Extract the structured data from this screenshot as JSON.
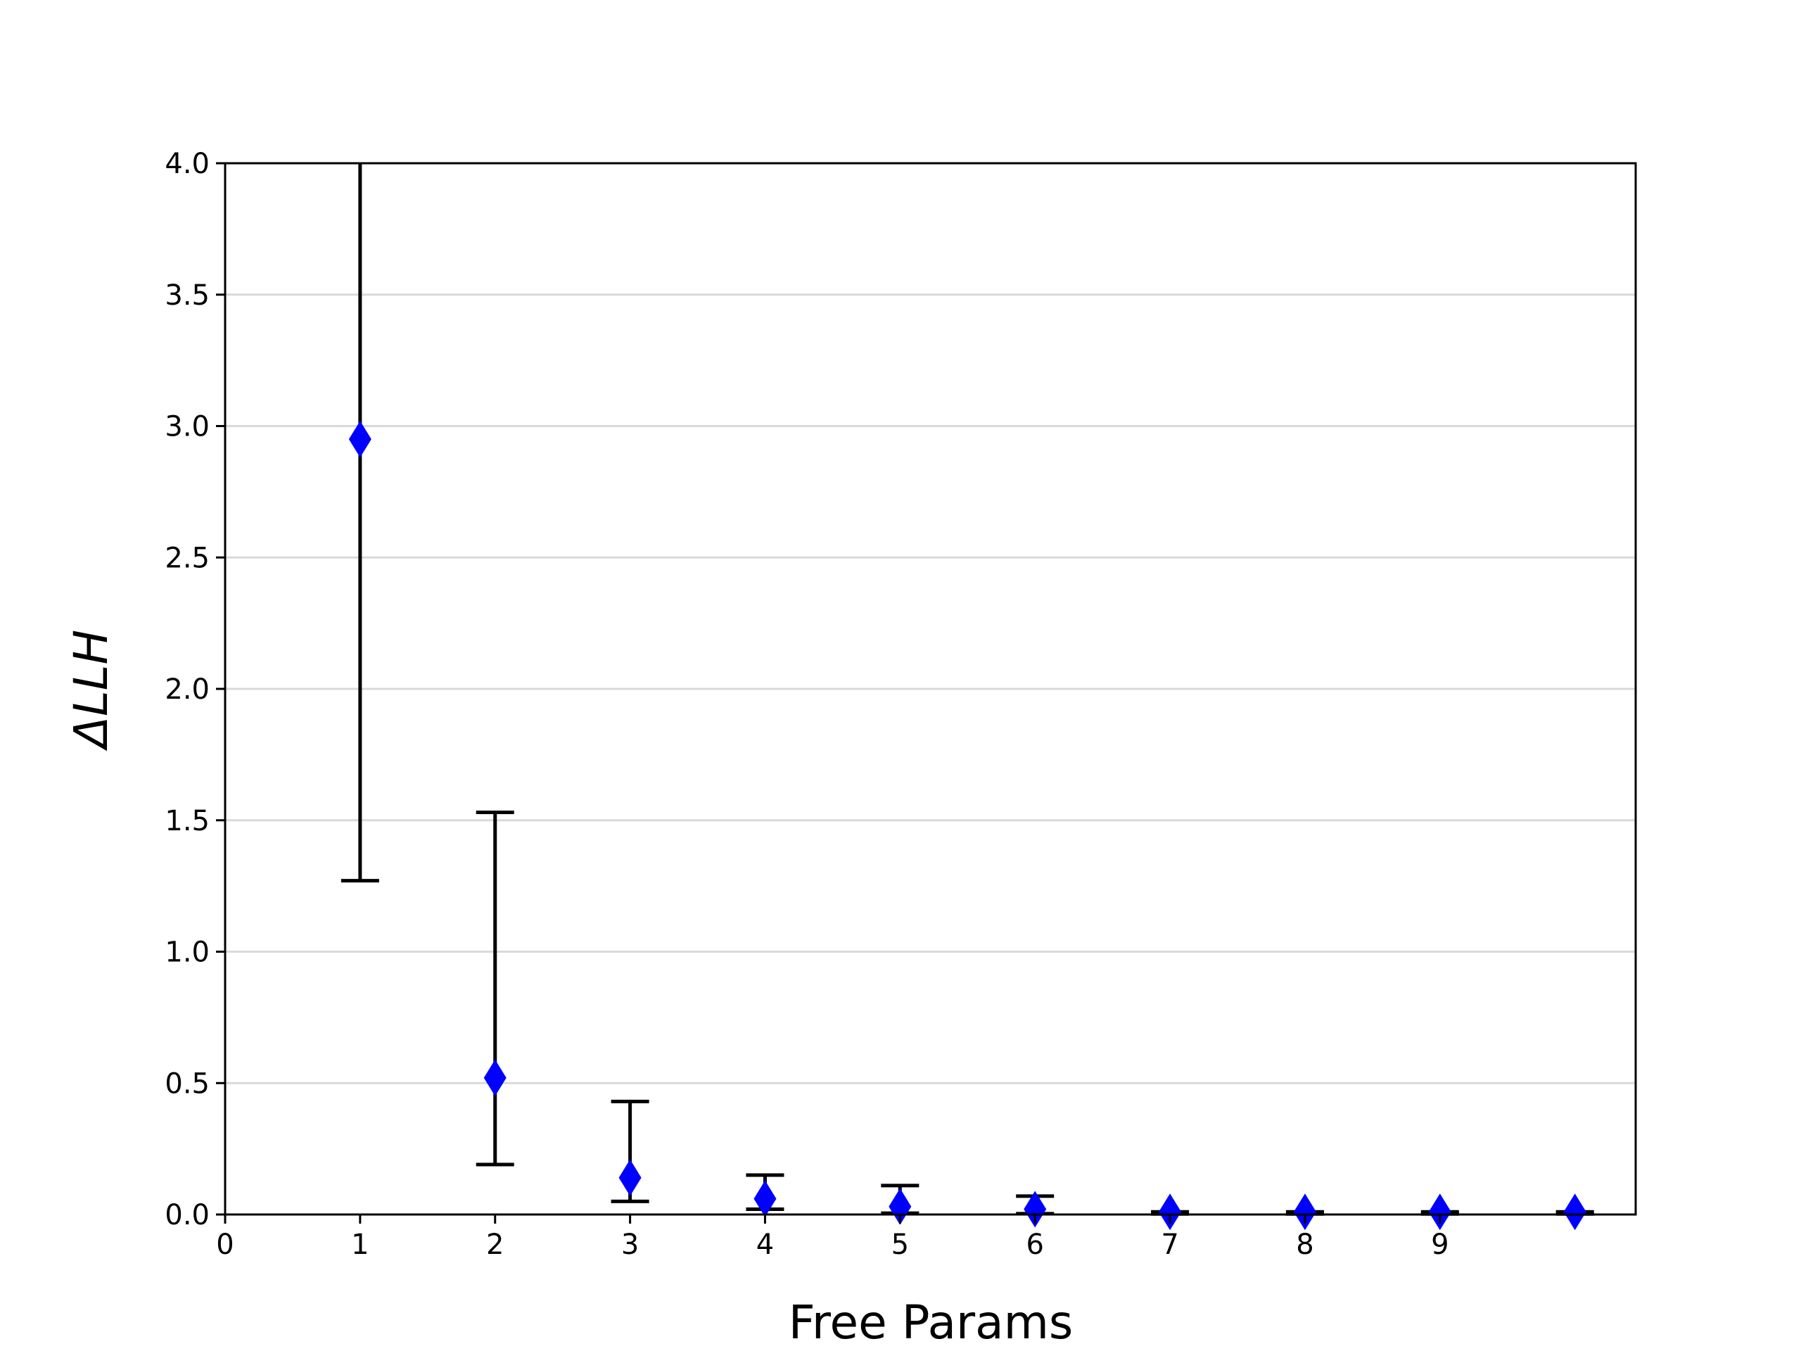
{
  "chart_data": {
    "type": "scatter",
    "title": "",
    "xlabel": "Free Params",
    "ylabel": "ΔLLH",
    "xlim": [
      0,
      10.45
    ],
    "ylim": [
      0,
      4.0
    ],
    "x_ticks": [
      0,
      1,
      2,
      3,
      4,
      5,
      6,
      7,
      8,
      9
    ],
    "x_tick_labels": [
      "0",
      "1",
      "2",
      "3",
      "4",
      "5",
      "6",
      "7",
      "8",
      "9"
    ],
    "y_ticks": [
      0,
      0.5,
      1.0,
      1.5,
      2.0,
      2.5,
      3.0,
      3.5,
      4.0
    ],
    "y_tick_labels": [
      "0.0",
      "0.5",
      "1.0",
      "1.5",
      "2.0",
      "2.5",
      "3.0",
      "3.5",
      "4.0"
    ],
    "grid": "horizontal",
    "series": [
      {
        "marker": "diamond",
        "marker_color": "#0000ff",
        "errorbar_color": "#000000",
        "x": [
          1,
          2,
          3,
          4,
          5,
          6,
          7,
          8,
          9,
          10
        ],
        "values": [
          2.95,
          0.52,
          0.14,
          0.06,
          0.03,
          0.02,
          0.01,
          0.01,
          0.01,
          0.01
        ],
        "err_low": [
          1.27,
          0.19,
          0.05,
          0.02,
          0.005,
          0.003,
          0.002,
          0.002,
          0.002,
          0.002
        ],
        "err_high": [
          4.0,
          1.53,
          0.43,
          0.15,
          0.11,
          0.07,
          0.01,
          0.01,
          0.01,
          0.01
        ]
      }
    ]
  }
}
